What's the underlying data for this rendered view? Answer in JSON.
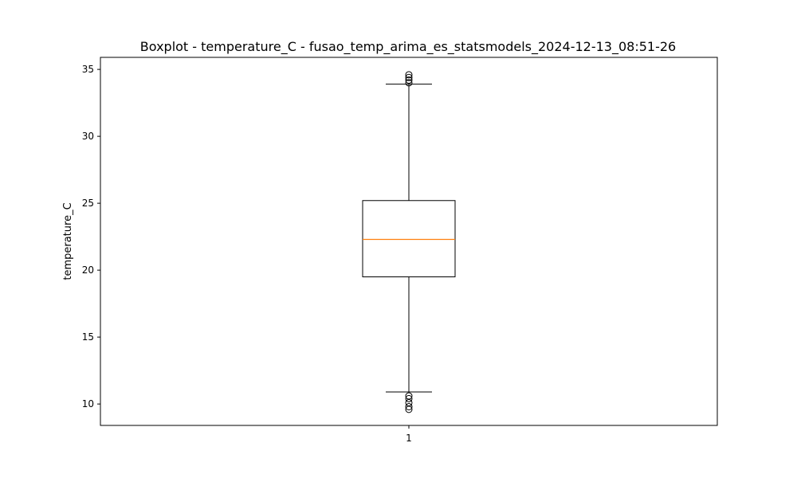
{
  "chart_data": {
    "type": "boxplot",
    "title": "Boxplot - temperature_C - fusao_temp_arima_es_statsmodels_2024-12-13_08:51-26",
    "xlabel": "",
    "ylabel": "temperature_C",
    "categories": [
      "1"
    ],
    "ylim": [
      8.4,
      35.9
    ],
    "y_ticks": [
      10,
      15,
      20,
      25,
      30,
      35
    ],
    "y_tick_labels": [
      "10",
      "15",
      "20",
      "25",
      "30",
      "35"
    ],
    "grid": false,
    "box": {
      "whisker_low": 10.9,
      "q1": 19.5,
      "median": 22.3,
      "q3": 25.2,
      "whisker_high": 33.9
    },
    "outliers": [
      9.6,
      9.8,
      10.1,
      10.4,
      10.6,
      34.0,
      34.2,
      34.4,
      34.6
    ],
    "colors": {
      "box": "#000000",
      "median": "#ff7f0e",
      "axes": "#000000"
    }
  }
}
